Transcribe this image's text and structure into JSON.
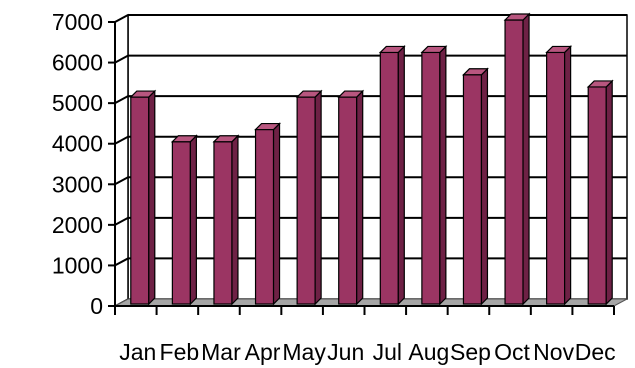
{
  "chart_data": {
    "type": "bar",
    "categories": [
      "Jan",
      "Feb",
      "Mar",
      "Apr",
      "May",
      "Jun",
      "Jul",
      "Aug",
      "Sep",
      "Oct",
      "Nov",
      "Dec"
    ],
    "values": [
      5100,
      4000,
      4000,
      4300,
      5100,
      5100,
      6200,
      6200,
      5650,
      7000,
      6200,
      5350
    ],
    "ylim": [
      0,
      7000
    ],
    "yticks": [
      "0",
      "1000",
      "2000",
      "3000",
      "4000",
      "5000",
      "6000",
      "7000"
    ],
    "grid": true,
    "legend": "none",
    "style": "3d-column",
    "colors": {
      "bar_front": "#9B3563",
      "bar_side": "#6E2145",
      "bar_top": "#B8567F",
      "back_wall": "#FFFFFF",
      "floor": "#A6A6A6",
      "gridline": "#000000"
    }
  }
}
